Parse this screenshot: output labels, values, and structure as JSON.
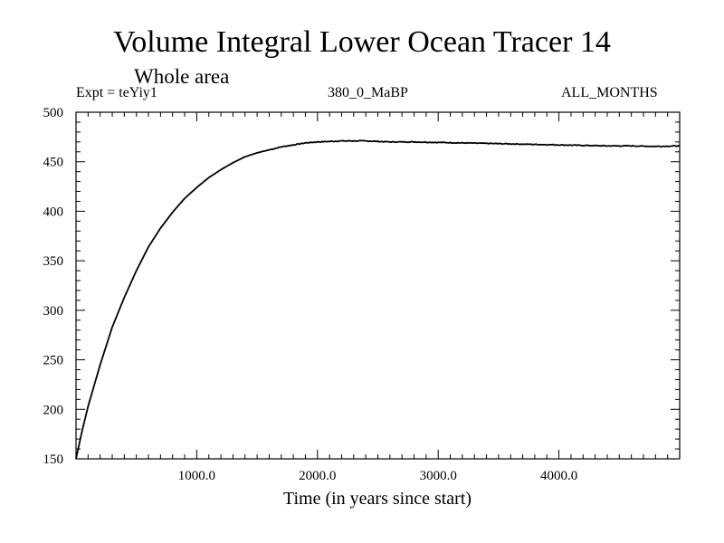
{
  "chart_data": {
    "type": "line",
    "title": "Volume Integral Lower Ocean Tracer 14",
    "subtitle": "Whole area",
    "expt_label": "Expt = teYiy1",
    "period_label": "380_0_MaBP",
    "months_label": "ALL_MONTHS",
    "xlabel": "Time (in years since start)",
    "ylabel": "",
    "xlim": [
      0,
      5000
    ],
    "ylim": [
      150,
      500
    ],
    "x_ticks": [
      1000,
      2000,
      3000,
      4000
    ],
    "x_tick_labels": [
      "1000.0",
      "2000.0",
      "3000.0",
      "4000.0"
    ],
    "y_ticks": [
      150,
      200,
      250,
      300,
      350,
      400,
      450,
      500
    ],
    "y_tick_labels": [
      "150",
      "200",
      "250",
      "300",
      "350",
      "400",
      "450",
      "500"
    ],
    "grid": false,
    "series": [
      {
        "name": "Lower Ocean Tracer 14",
        "x": [
          0,
          50,
          100,
          200,
          300,
          400,
          500,
          600,
          700,
          800,
          900,
          1000,
          1100,
          1200,
          1300,
          1400,
          1500,
          1600,
          1700,
          1800,
          1900,
          2000,
          2200,
          2400,
          2600,
          2800,
          3000,
          3200,
          3400,
          3600,
          3800,
          4000,
          4200,
          4400,
          4600,
          4800,
          5000
        ],
        "y": [
          150,
          178,
          203,
          245,
          283,
          313,
          340,
          364,
          383,
          399,
          413,
          424,
          434,
          442,
          449,
          455,
          459,
          462,
          465,
          467,
          469,
          470,
          471,
          471,
          470,
          470,
          469.5,
          469,
          468.5,
          468,
          467.5,
          467,
          466.5,
          466,
          466,
          465.5,
          466
        ]
      }
    ]
  }
}
